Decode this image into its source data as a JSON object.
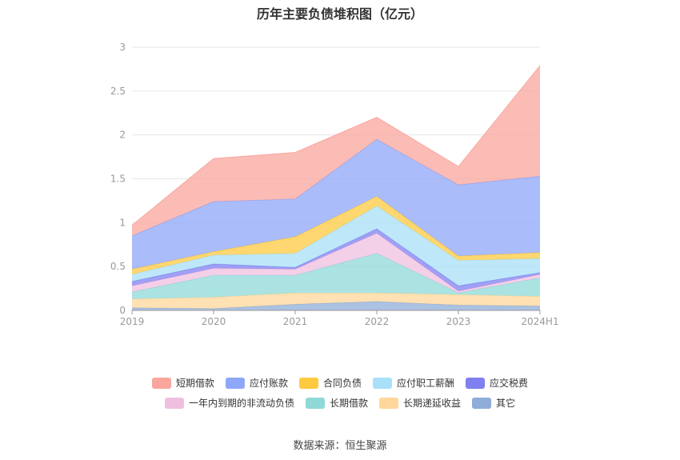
{
  "chart_data": {
    "type": "area",
    "stacked": true,
    "title": "历年主要负债堆积图（亿元）",
    "categories": [
      "2019",
      "2020",
      "2021",
      "2022",
      "2023",
      "2024H1"
    ],
    "y_ticks": [
      "0",
      "0.5",
      "1",
      "1.5",
      "2",
      "2.5",
      "3"
    ],
    "ylim": [
      0,
      3
    ],
    "grid": true,
    "legend_position": "bottom",
    "series": [
      {
        "name": "其它",
        "color": "#8fadd8",
        "values": [
          0.03,
          0.02,
          0.07,
          0.1,
          0.06,
          0.05
        ]
      },
      {
        "name": "长期递延收益",
        "color": "#ffd79a",
        "values": [
          0.1,
          0.13,
          0.13,
          0.1,
          0.12,
          0.11
        ]
      },
      {
        "name": "长期借款",
        "color": "#8fdad9",
        "values": [
          0.08,
          0.25,
          0.2,
          0.45,
          0.02,
          0.21
        ]
      },
      {
        "name": "一年内到期的非流动负债",
        "color": "#f0bfe0",
        "values": [
          0.07,
          0.08,
          0.07,
          0.23,
          0.02,
          0.04
        ]
      },
      {
        "name": "应交税费",
        "color": "#8080f0",
        "values": [
          0.05,
          0.05,
          0.02,
          0.05,
          0.06,
          0.02
        ]
      },
      {
        "name": "应付职工薪酬",
        "color": "#a8e0f8",
        "values": [
          0.08,
          0.1,
          0.16,
          0.26,
          0.29,
          0.16
        ]
      },
      {
        "name": "合同负债",
        "color": "#ffc940",
        "values": [
          0.06,
          0.04,
          0.19,
          0.11,
          0.05,
          0.07
        ]
      },
      {
        "name": "应付账款",
        "color": "#8ea7f8",
        "values": [
          0.38,
          0.57,
          0.43,
          0.65,
          0.81,
          0.87
        ]
      },
      {
        "name": "短期借款",
        "color": "#faa69e",
        "values": [
          0.12,
          0.49,
          0.53,
          0.25,
          0.21,
          1.26
        ]
      }
    ]
  },
  "legend_rows": [
    [
      {
        "label": "短期借款",
        "color": "#faa69e"
      },
      {
        "label": "应付账款",
        "color": "#8ea7f8"
      },
      {
        "label": "合同负债",
        "color": "#ffc940"
      },
      {
        "label": "应付职工薪酬",
        "color": "#a8e0f8"
      },
      {
        "label": "应交税费",
        "color": "#8080f0"
      }
    ],
    [
      {
        "label": "一年内到期的非流动负债",
        "color": "#f0bfe0"
      },
      {
        "label": "长期借款",
        "color": "#8fdad9"
      },
      {
        "label": "长期递延收益",
        "color": "#ffd79a"
      },
      {
        "label": "其它",
        "color": "#8fadd8"
      }
    ]
  ],
  "source": "数据来源：恒生聚源"
}
